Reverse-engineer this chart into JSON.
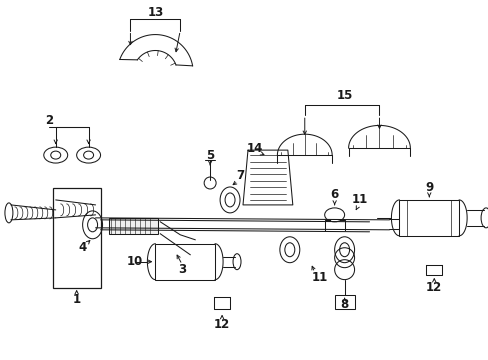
{
  "background_color": "#ffffff",
  "line_color": "#1a1a1a",
  "figsize": [
    4.89,
    3.6
  ],
  "dpi": 100,
  "parts": {
    "label_fontsize": 8.5,
    "label_fontweight": "bold",
    "lw": 0.75
  }
}
